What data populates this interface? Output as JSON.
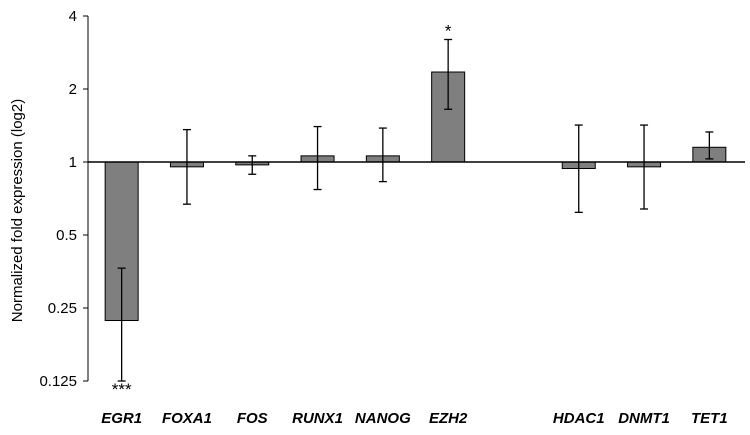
{
  "chart_data": {
    "type": "bar",
    "ylabel": "Normalized fold expression (log2)",
    "y_scale": "log2",
    "ylim": [
      0.125,
      4
    ],
    "yticks": [
      {
        "value": 0.125,
        "label": "0.125"
      },
      {
        "value": 0.25,
        "label": "0.25"
      },
      {
        "value": 0.5,
        "label": "0.5"
      },
      {
        "value": 1,
        "label": "1"
      },
      {
        "value": 2,
        "label": "2"
      },
      {
        "value": 4,
        "label": "4"
      }
    ],
    "baseline": 1,
    "bar_color": "#7f7f7f",
    "categories": [
      "EGR1",
      "FOXA1",
      "FOS",
      "RUNX1",
      "NANOG",
      "EZH2",
      "",
      "HDAC1",
      "DNMT1",
      "TET1"
    ],
    "values": [
      0.222,
      0.955,
      0.973,
      1.06,
      1.06,
      2.35,
      null,
      0.94,
      0.955,
      1.15
    ],
    "err_low": [
      0.125,
      0.67,
      0.89,
      0.77,
      0.83,
      1.65,
      null,
      0.62,
      0.64,
      1.03
    ],
    "err_high": [
      0.365,
      1.36,
      1.06,
      1.4,
      1.38,
      3.2,
      null,
      1.42,
      1.42,
      1.33
    ],
    "significance": [
      "***",
      "",
      "",
      "",
      "",
      "*",
      "",
      "",
      "",
      ""
    ],
    "grid": false,
    "legend": "none"
  }
}
